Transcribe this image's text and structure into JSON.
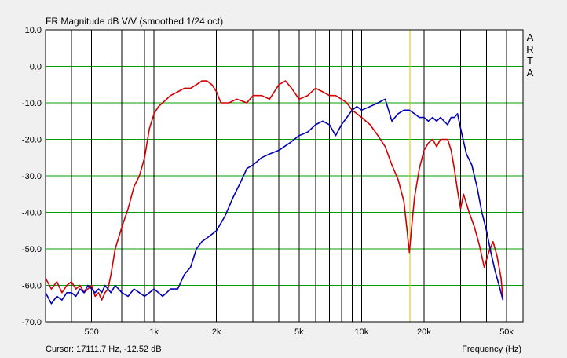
{
  "chart_data": {
    "type": "line",
    "title": "FR Magnitude dB V/V (smoothed 1/24 oct)",
    "xlabel": "Frequency (Hz)",
    "ylabel": "",
    "x_scale": "log",
    "xlim": [
      300,
      60000
    ],
    "ylim": [
      -70,
      10
    ],
    "x_ticks": [
      {
        "value": 500,
        "label": "500"
      },
      {
        "value": 1000,
        "label": "1k"
      },
      {
        "value": 2000,
        "label": "2k"
      },
      {
        "value": 5000,
        "label": "5k"
      },
      {
        "value": 10000,
        "label": "10k"
      },
      {
        "value": 20000,
        "label": "20k"
      },
      {
        "value": 50000,
        "label": "50k"
      }
    ],
    "y_ticks": [
      {
        "value": 10,
        "label": "10.0"
      },
      {
        "value": 0,
        "label": "0.0"
      },
      {
        "value": -10,
        "label": "-10.0"
      },
      {
        "value": -20,
        "label": "-20.0"
      },
      {
        "value": -30,
        "label": "-30.0"
      },
      {
        "value": -40,
        "label": "-40.0"
      },
      {
        "value": -50,
        "label": "-50.0"
      },
      {
        "value": -60,
        "label": "-60.0"
      },
      {
        "value": -70,
        "label": "-70.0"
      }
    ],
    "grid": true,
    "cursor": {
      "x": 17111.7,
      "y": -12.52,
      "label": "Cursor: 17111.7 Hz, -12.52 dB"
    },
    "watermark": "ARTA",
    "series": [
      {
        "color": "#d40000",
        "points": [
          [
            300,
            -58
          ],
          [
            320,
            -61
          ],
          [
            340,
            -59
          ],
          [
            360,
            -62
          ],
          [
            380,
            -60
          ],
          [
            400,
            -59
          ],
          [
            420,
            -61
          ],
          [
            440,
            -60
          ],
          [
            460,
            -62
          ],
          [
            480,
            -61
          ],
          [
            500,
            -60
          ],
          [
            520,
            -63
          ],
          [
            540,
            -62
          ],
          [
            560,
            -64
          ],
          [
            580,
            -62
          ],
          [
            600,
            -61
          ],
          [
            620,
            -57
          ],
          [
            650,
            -50
          ],
          [
            700,
            -44
          ],
          [
            750,
            -39
          ],
          [
            800,
            -33
          ],
          [
            850,
            -30
          ],
          [
            900,
            -25
          ],
          [
            950,
            -17
          ],
          [
            1000,
            -13
          ],
          [
            1050,
            -11
          ],
          [
            1100,
            -10
          ],
          [
            1200,
            -8
          ],
          [
            1300,
            -7
          ],
          [
            1400,
            -6
          ],
          [
            1500,
            -6
          ],
          [
            1600,
            -5
          ],
          [
            1700,
            -4
          ],
          [
            1800,
            -4
          ],
          [
            1900,
            -5
          ],
          [
            2000,
            -7
          ],
          [
            2100,
            -10
          ],
          [
            2300,
            -10
          ],
          [
            2500,
            -9
          ],
          [
            2800,
            -10
          ],
          [
            3000,
            -8
          ],
          [
            3300,
            -8
          ],
          [
            3600,
            -9
          ],
          [
            4000,
            -5
          ],
          [
            4300,
            -4
          ],
          [
            4600,
            -6
          ],
          [
            5000,
            -9
          ],
          [
            5500,
            -8
          ],
          [
            6000,
            -6
          ],
          [
            6500,
            -7
          ],
          [
            7000,
            -8
          ],
          [
            7500,
            -8
          ],
          [
            8000,
            -9
          ],
          [
            8500,
            -10
          ],
          [
            9000,
            -12
          ],
          [
            9500,
            -13
          ],
          [
            10000,
            -14
          ],
          [
            11000,
            -16
          ],
          [
            12000,
            -19
          ],
          [
            13000,
            -22
          ],
          [
            14000,
            -27
          ],
          [
            15000,
            -31
          ],
          [
            16000,
            -37
          ],
          [
            16500,
            -44
          ],
          [
            17000,
            -51
          ],
          [
            17500,
            -43
          ],
          [
            18000,
            -36
          ],
          [
            19000,
            -28
          ],
          [
            20000,
            -23
          ],
          [
            21000,
            -21
          ],
          [
            22000,
            -20
          ],
          [
            23000,
            -22
          ],
          [
            24000,
            -20
          ],
          [
            25000,
            -20
          ],
          [
            26000,
            -20
          ],
          [
            27000,
            -23
          ],
          [
            28000,
            -28
          ],
          [
            29000,
            -34
          ],
          [
            30000,
            -39
          ],
          [
            31000,
            -35
          ],
          [
            33000,
            -40
          ],
          [
            35000,
            -44
          ],
          [
            37000,
            -49
          ],
          [
            39000,
            -55
          ],
          [
            41000,
            -51
          ],
          [
            43000,
            -48
          ],
          [
            45000,
            -52
          ],
          [
            47000,
            -58
          ],
          [
            48000,
            -64
          ]
        ]
      },
      {
        "color": "#0000b4",
        "points": [
          [
            300,
            -62
          ],
          [
            320,
            -65
          ],
          [
            340,
            -63
          ],
          [
            360,
            -64
          ],
          [
            380,
            -62
          ],
          [
            400,
            -62
          ],
          [
            420,
            -63
          ],
          [
            440,
            -61
          ],
          [
            460,
            -62
          ],
          [
            480,
            -60
          ],
          [
            500,
            -61
          ],
          [
            520,
            -62
          ],
          [
            540,
            -61
          ],
          [
            560,
            -62
          ],
          [
            580,
            -60
          ],
          [
            600,
            -61
          ],
          [
            620,
            -62
          ],
          [
            650,
            -60
          ],
          [
            700,
            -62
          ],
          [
            750,
            -63
          ],
          [
            800,
            -61
          ],
          [
            850,
            -62
          ],
          [
            900,
            -63
          ],
          [
            950,
            -62
          ],
          [
            1000,
            -61
          ],
          [
            1050,
            -62
          ],
          [
            1100,
            -63
          ],
          [
            1150,
            -62
          ],
          [
            1200,
            -61
          ],
          [
            1300,
            -61
          ],
          [
            1400,
            -57
          ],
          [
            1500,
            -55
          ],
          [
            1600,
            -50
          ],
          [
            1700,
            -48
          ],
          [
            1800,
            -47
          ],
          [
            1900,
            -46
          ],
          [
            2000,
            -45
          ],
          [
            2200,
            -41
          ],
          [
            2400,
            -36
          ],
          [
            2600,
            -32
          ],
          [
            2800,
            -28
          ],
          [
            3000,
            -27
          ],
          [
            3300,
            -25
          ],
          [
            3600,
            -24
          ],
          [
            4000,
            -23
          ],
          [
            4500,
            -21
          ],
          [
            5000,
            -19
          ],
          [
            5500,
            -18
          ],
          [
            6000,
            -16
          ],
          [
            6500,
            -15
          ],
          [
            7000,
            -16
          ],
          [
            7500,
            -19
          ],
          [
            8000,
            -16
          ],
          [
            8500,
            -14
          ],
          [
            9000,
            -12
          ],
          [
            9500,
            -11
          ],
          [
            10000,
            -12
          ],
          [
            11000,
            -11
          ],
          [
            12000,
            -10
          ],
          [
            13000,
            -9
          ],
          [
            14000,
            -15
          ],
          [
            15000,
            -13
          ],
          [
            16000,
            -12
          ],
          [
            17000,
            -12
          ],
          [
            18000,
            -13
          ],
          [
            19000,
            -14
          ],
          [
            20000,
            -14
          ],
          [
            21000,
            -15
          ],
          [
            22000,
            -14
          ],
          [
            23000,
            -15
          ],
          [
            24000,
            -14
          ],
          [
            25000,
            -15
          ],
          [
            26000,
            -16
          ],
          [
            27000,
            -14
          ],
          [
            28000,
            -14
          ],
          [
            29000,
            -13
          ],
          [
            30000,
            -17
          ],
          [
            32000,
            -24
          ],
          [
            34000,
            -27
          ],
          [
            36000,
            -33
          ],
          [
            38000,
            -40
          ],
          [
            40000,
            -45
          ],
          [
            42000,
            -51
          ],
          [
            44000,
            -56
          ],
          [
            46000,
            -60
          ],
          [
            48000,
            -64
          ]
        ]
      }
    ]
  }
}
